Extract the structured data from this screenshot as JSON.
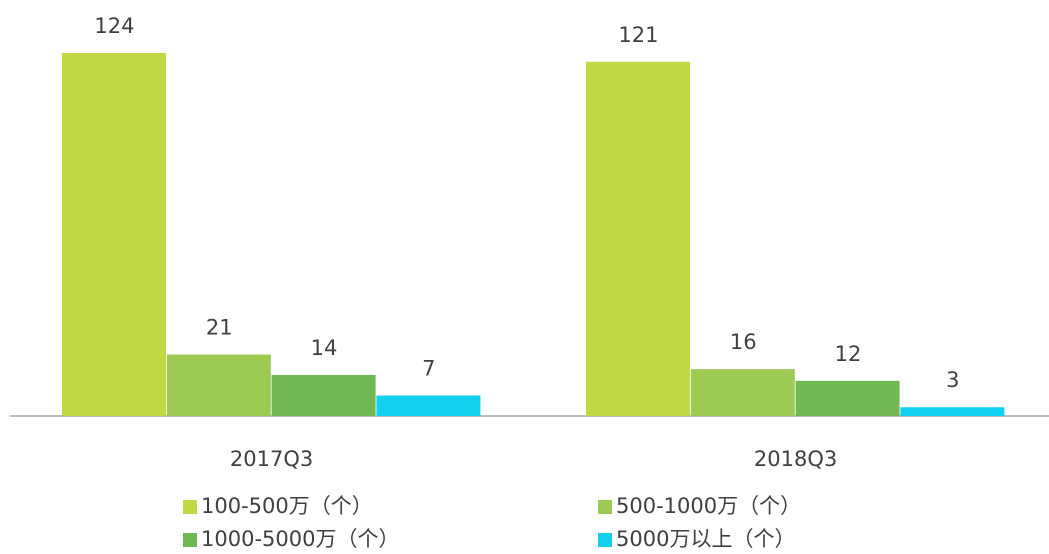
{
  "chart_data": {
    "type": "bar",
    "categories": [
      "2017Q3",
      "2018Q3"
    ],
    "series": [
      {
        "name": "100-500万（个）",
        "color": "#c0d843",
        "values": [
          124,
          121
        ]
      },
      {
        "name": "500-1000万（个）",
        "color": "#9dca53",
        "values": [
          21,
          16
        ]
      },
      {
        "name": "1000-5000万（个）",
        "color": "#71b853",
        "values": [
          14,
          12
        ]
      },
      {
        "name": "5000万以上（个）",
        "color": "#13d0f0",
        "values": [
          7,
          3
        ]
      }
    ],
    "legend": "bottom"
  }
}
